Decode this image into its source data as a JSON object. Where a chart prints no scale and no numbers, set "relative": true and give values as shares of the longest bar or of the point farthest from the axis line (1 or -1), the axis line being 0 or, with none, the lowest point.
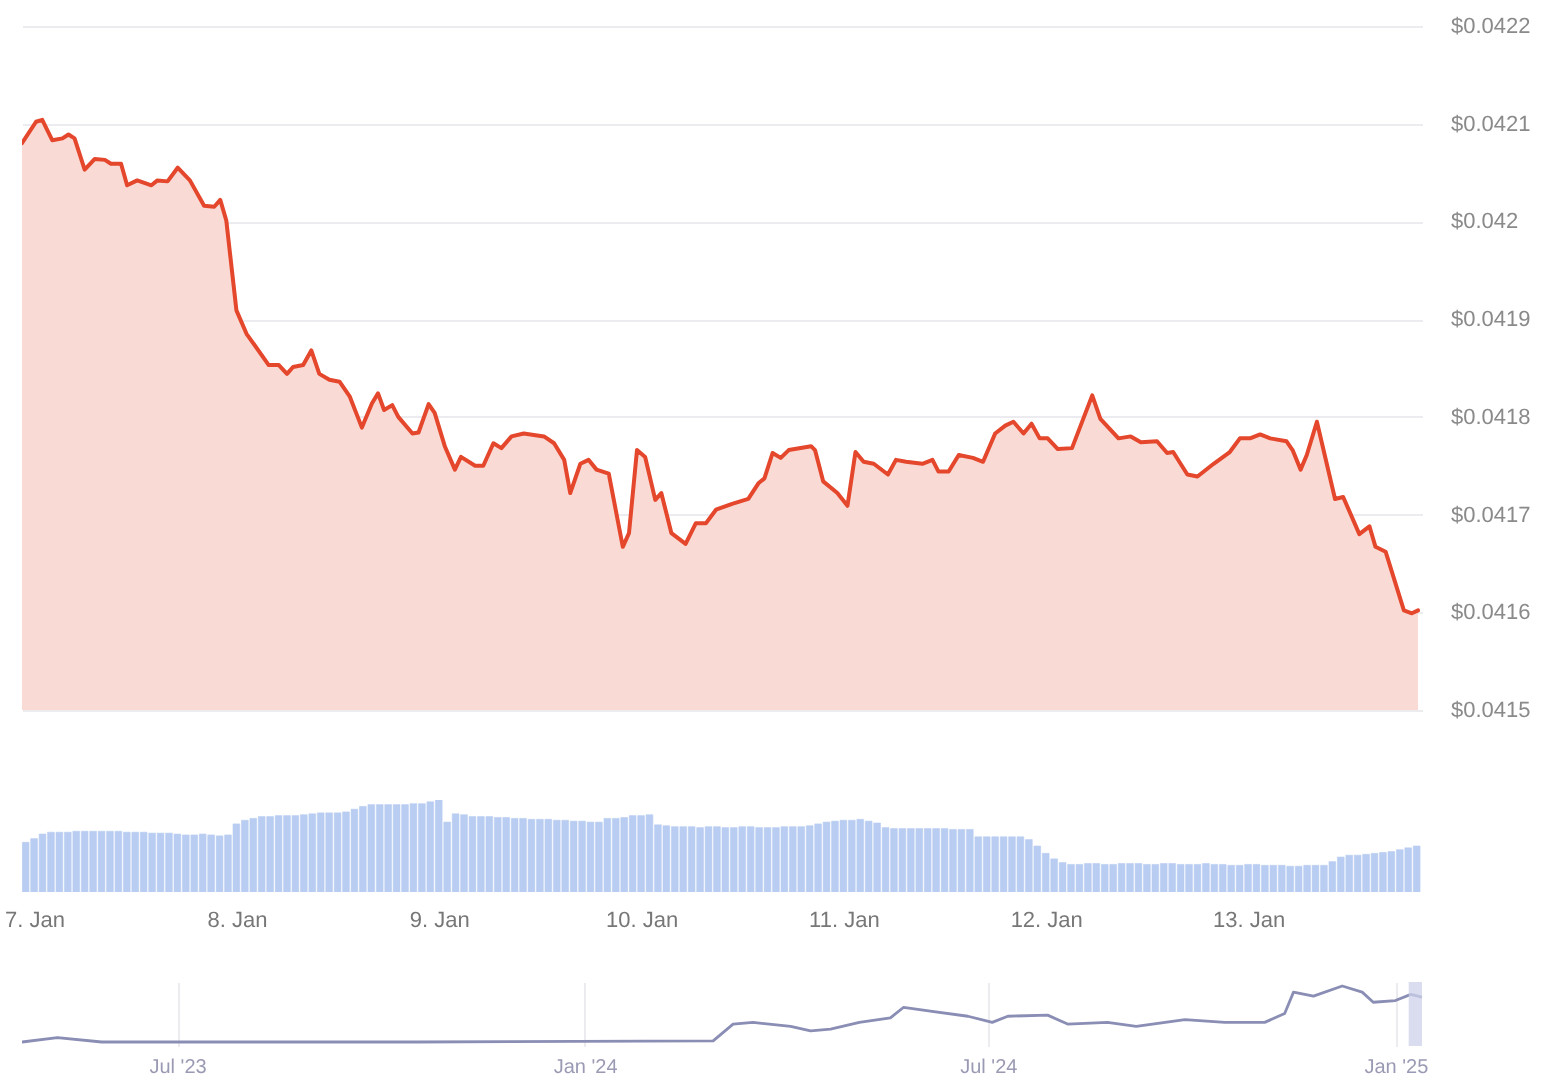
{
  "chart_data": [
    {
      "type": "area",
      "x": [
        "2025-01-06T22:34",
        "2025-01-07T00:14",
        "2025-01-07T00:58",
        "2025-01-07T02:10",
        "2025-01-07T03:22",
        "2025-01-07T04:05",
        "2025-01-07T04:48",
        "2025-01-07T06:00",
        "2025-01-07T07:12",
        "2025-01-07T08:24",
        "2025-01-07T09:07",
        "2025-01-07T10:19",
        "2025-01-07T11:02",
        "2025-01-07T12:14",
        "2025-01-07T13:55",
        "2025-01-07T14:38",
        "2025-01-07T15:50",
        "2025-01-07T17:02",
        "2025-01-07T18:29",
        "2025-01-07T20:10",
        "2025-01-07T21:22",
        "2025-01-07T22:05",
        "2025-01-07T22:48",
        "2025-01-08T00:00",
        "2025-01-08T01:12",
        "2025-01-08T03:50",
        "2025-01-08T05:02",
        "2025-01-08T06:00",
        "2025-01-08T06:43",
        "2025-01-08T07:55",
        "2025-01-08T08:53",
        "2025-01-08T09:50",
        "2025-01-08T11:02",
        "2025-01-08T12:14",
        "2025-01-08T13:26",
        "2025-01-08T14:53",
        "2025-01-08T16:05",
        "2025-01-08T16:48",
        "2025-01-08T17:31",
        "2025-01-08T18:29",
        "2025-01-08T19:12",
        "2025-01-08T20:53",
        "2025-01-08T21:36",
        "2025-01-08T22:48",
        "2025-01-08T23:31",
        "2025-01-09T00:43",
        "2025-01-09T01:55",
        "2025-01-09T02:38",
        "2025-01-09T04:19",
        "2025-01-09T05:17",
        "2025-01-09T06:29",
        "2025-01-09T07:26",
        "2025-01-09T08:38",
        "2025-01-09T10:05",
        "2025-01-09T12:29",
        "2025-01-09T13:41",
        "2025-01-09T14:53",
        "2025-01-09T15:36",
        "2025-01-09T16:48",
        "2025-01-09T17:46",
        "2025-01-09T18:43",
        "2025-01-09T20:10",
        "2025-01-09T21:50",
        "2025-01-09T22:34",
        "2025-01-09T23:31",
        "2025-01-10T00:29",
        "2025-01-10T01:41",
        "2025-01-10T02:24",
        "2025-01-10T03:36",
        "2025-01-10T05:17",
        "2025-01-10T06:29",
        "2025-01-10T07:41",
        "2025-01-10T08:53",
        "2025-01-10T10:48",
        "2025-01-10T12:43",
        "2025-01-10T13:55",
        "2025-01-10T14:38",
        "2025-01-10T15:36",
        "2025-01-10T16:34",
        "2025-01-10T17:31",
        "2025-01-10T20:10",
        "2025-01-10T20:38",
        "2025-01-10T21:36",
        "2025-01-10T23:17",
        "2025-01-11T00:29",
        "2025-01-11T01:26",
        "2025-01-11T02:24",
        "2025-01-11T03:36",
        "2025-01-11T05:17",
        "2025-01-11T06:14",
        "2025-01-11T07:26",
        "2025-01-11T09:22",
        "2025-01-11T10:34",
        "2025-01-11T11:17",
        "2025-01-11T12:29",
        "2025-01-11T13:41",
        "2025-01-11T15:22",
        "2025-01-11T16:34",
        "2025-01-11T18:00",
        "2025-01-11T19:12",
        "2025-01-11T20:10",
        "2025-01-11T21:22",
        "2025-01-11T22:19",
        "2025-01-11T23:17",
        "2025-01-12T00:14",
        "2025-01-12T01:26",
        "2025-01-12T03:07",
        "2025-01-12T05:31",
        "2025-01-12T06:29",
        "2025-01-12T08:38",
        "2025-01-12T10:05",
        "2025-01-12T11:17",
        "2025-01-12T13:12",
        "2025-01-12T14:24",
        "2025-01-12T15:07",
        "2025-01-12T16:48",
        "2025-01-12T18:00",
        "2025-01-12T19:55",
        "2025-01-12T21:50",
        "2025-01-12T23:02",
        "2025-01-13T00:14",
        "2025-01-13T01:26",
        "2025-01-13T02:38",
        "2025-01-13T04:34",
        "2025-01-13T05:17",
        "2025-01-13T06:14",
        "2025-01-13T06:58",
        "2025-01-13T08:10",
        "2025-01-13T10:19",
        "2025-01-13T11:17",
        "2025-01-13T13:12",
        "2025-01-13T14:24",
        "2025-01-13T15:07",
        "2025-01-13T16:19",
        "2025-01-13T18:29",
        "2025-01-13T19:26",
        "2025-01-13T20:10"
      ],
      "values": [
        0.04208,
        0.042102,
        0.042104,
        0.042083,
        0.042085,
        0.042089,
        0.042085,
        0.042053,
        0.042064,
        0.042063,
        0.042059,
        0.042059,
        0.042037,
        0.042042,
        0.042037,
        0.042042,
        0.042041,
        0.042055,
        0.042042,
        0.042016,
        0.042015,
        0.042022,
        0.042001,
        0.041909,
        0.041885,
        0.041853,
        0.041853,
        0.041844,
        0.041851,
        0.041853,
        0.041868,
        0.041844,
        0.041838,
        0.041836,
        0.041821,
        0.041789,
        0.041814,
        0.041824,
        0.041807,
        0.041812,
        0.0418,
        0.041783,
        0.041784,
        0.041813,
        0.041804,
        0.04177,
        0.041746,
        0.041759,
        0.04175,
        0.04175,
        0.041773,
        0.041768,
        0.04178,
        0.041783,
        0.04178,
        0.041773,
        0.041756,
        0.041722,
        0.041752,
        0.041756,
        0.041746,
        0.041742,
        0.041667,
        0.041681,
        0.041766,
        0.041759,
        0.041715,
        0.041722,
        0.041681,
        0.04167,
        0.041691,
        0.041691,
        0.041705,
        0.041711,
        0.041716,
        0.041732,
        0.041737,
        0.041763,
        0.041758,
        0.041766,
        0.04177,
        0.041766,
        0.041734,
        0.041722,
        0.041709,
        0.041764,
        0.041754,
        0.041752,
        0.041741,
        0.041756,
        0.041754,
        0.041752,
        0.041756,
        0.041744,
        0.041744,
        0.041761,
        0.041758,
        0.041754,
        0.041783,
        0.041791,
        0.041795,
        0.041783,
        0.041793,
        0.041778,
        0.041778,
        0.041767,
        0.041768,
        0.041822,
        0.041798,
        0.041778,
        0.04178,
        0.041774,
        0.041775,
        0.041763,
        0.041764,
        0.041741,
        0.041739,
        0.041752,
        0.041764,
        0.041778,
        0.041778,
        0.041782,
        0.041778,
        0.041775,
        0.041766,
        0.041746,
        0.041761,
        0.041795,
        0.041716,
        0.041718,
        0.04168,
        0.041688,
        0.041667,
        0.041662,
        0.041602,
        0.041599,
        0.041602
      ],
      "color": "#e4472c",
      "xlim": [
        "2025-01-06T22:34",
        "2025-01-13T20:38"
      ],
      "ylim": [
        0.0415,
        0.0422
      ],
      "yticks": [
        {
          "value": 0.0415,
          "label": "$0.0415"
        },
        {
          "value": 0.0416,
          "label": "$0.0416"
        },
        {
          "value": 0.0417,
          "label": "$0.0417"
        },
        {
          "value": 0.0418,
          "label": "$0.0418"
        },
        {
          "value": 0.0419,
          "label": "$0.0419"
        },
        {
          "value": 0.042,
          "label": "$0.042"
        },
        {
          "value": 0.0421,
          "label": "$0.0421"
        },
        {
          "value": 0.0422,
          "label": "$0.0422"
        }
      ],
      "grid": "y",
      "tick_labels": "y"
    },
    {
      "type": "bar",
      "relative": true,
      "x": [
        "2025-01-06T23:00",
        "2025-01-07T00:00",
        "2025-01-07T01:00",
        "2025-01-07T02:00",
        "2025-01-07T03:00",
        "2025-01-07T04:00",
        "2025-01-07T05:00",
        "2025-01-07T06:00",
        "2025-01-07T07:00",
        "2025-01-07T08:00",
        "2025-01-07T09:00",
        "2025-01-07T10:00",
        "2025-01-07T11:00",
        "2025-01-07T12:00",
        "2025-01-07T13:00",
        "2025-01-07T14:00",
        "2025-01-07T15:00",
        "2025-01-07T16:00",
        "2025-01-07T17:00",
        "2025-01-07T18:00",
        "2025-01-07T19:00",
        "2025-01-07T20:00",
        "2025-01-07T21:00",
        "2025-01-07T22:00",
        "2025-01-07T23:00",
        "2025-01-08T00:00",
        "2025-01-08T01:00",
        "2025-01-08T02:00",
        "2025-01-08T03:00",
        "2025-01-08T04:00",
        "2025-01-08T05:00",
        "2025-01-08T06:00",
        "2025-01-08T07:00",
        "2025-01-08T08:00",
        "2025-01-08T09:00",
        "2025-01-08T10:00",
        "2025-01-08T11:00",
        "2025-01-08T12:00",
        "2025-01-08T13:00",
        "2025-01-08T14:00",
        "2025-01-08T15:00",
        "2025-01-08T16:00",
        "2025-01-08T17:00",
        "2025-01-08T18:00",
        "2025-01-08T19:00",
        "2025-01-08T20:00",
        "2025-01-08T21:00",
        "2025-01-08T22:00",
        "2025-01-08T23:00",
        "2025-01-09T00:00",
        "2025-01-09T01:00",
        "2025-01-09T02:00",
        "2025-01-09T03:00",
        "2025-01-09T04:00",
        "2025-01-09T05:00",
        "2025-01-09T06:00",
        "2025-01-09T07:00",
        "2025-01-09T08:00",
        "2025-01-09T09:00",
        "2025-01-09T10:00",
        "2025-01-09T11:00",
        "2025-01-09T12:00",
        "2025-01-09T13:00",
        "2025-01-09T14:00",
        "2025-01-09T15:00",
        "2025-01-09T16:00",
        "2025-01-09T17:00",
        "2025-01-09T18:00",
        "2025-01-09T19:00",
        "2025-01-09T20:00",
        "2025-01-09T21:00",
        "2025-01-09T22:00",
        "2025-01-09T23:00",
        "2025-01-10T00:00",
        "2025-01-10T01:00",
        "2025-01-10T02:00",
        "2025-01-10T03:00",
        "2025-01-10T04:00",
        "2025-01-10T05:00",
        "2025-01-10T06:00",
        "2025-01-10T07:00",
        "2025-01-10T08:00",
        "2025-01-10T09:00",
        "2025-01-10T10:00",
        "2025-01-10T11:00",
        "2025-01-10T12:00",
        "2025-01-10T13:00",
        "2025-01-10T14:00",
        "2025-01-10T15:00",
        "2025-01-10T16:00",
        "2025-01-10T17:00",
        "2025-01-10T18:00",
        "2025-01-10T19:00",
        "2025-01-10T20:00",
        "2025-01-10T21:00",
        "2025-01-10T22:00",
        "2025-01-10T23:00",
        "2025-01-11T00:00",
        "2025-01-11T01:00",
        "2025-01-11T02:00",
        "2025-01-11T03:00",
        "2025-01-11T04:00",
        "2025-01-11T05:00",
        "2025-01-11T06:00",
        "2025-01-11T07:00",
        "2025-01-11T08:00",
        "2025-01-11T09:00",
        "2025-01-11T10:00",
        "2025-01-11T11:00",
        "2025-01-11T12:00",
        "2025-01-11T13:00",
        "2025-01-11T14:00",
        "2025-01-11T15:00",
        "2025-01-11T16:00",
        "2025-01-11T17:00",
        "2025-01-11T18:00",
        "2025-01-11T19:00",
        "2025-01-11T20:00",
        "2025-01-11T21:00",
        "2025-01-11T22:00",
        "2025-01-11T23:00",
        "2025-01-12T00:00",
        "2025-01-12T01:00",
        "2025-01-12T02:00",
        "2025-01-12T03:00",
        "2025-01-12T04:00",
        "2025-01-12T05:00",
        "2025-01-12T06:00",
        "2025-01-12T07:00",
        "2025-01-12T08:00",
        "2025-01-12T09:00",
        "2025-01-12T10:00",
        "2025-01-12T11:00",
        "2025-01-12T12:00",
        "2025-01-12T13:00",
        "2025-01-12T14:00",
        "2025-01-12T15:00",
        "2025-01-12T16:00",
        "2025-01-12T17:00",
        "2025-01-12T18:00",
        "2025-01-12T19:00",
        "2025-01-12T20:00",
        "2025-01-12T21:00",
        "2025-01-12T22:00",
        "2025-01-12T23:00",
        "2025-01-13T00:00",
        "2025-01-13T01:00",
        "2025-01-13T02:00",
        "2025-01-13T03:00",
        "2025-01-13T04:00",
        "2025-01-13T05:00",
        "2025-01-13T06:00",
        "2025-01-13T07:00",
        "2025-01-13T08:00",
        "2025-01-13T09:00",
        "2025-01-13T10:00",
        "2025-01-13T11:00",
        "2025-01-13T12:00",
        "2025-01-13T13:00",
        "2025-01-13T14:00",
        "2025-01-13T15:00",
        "2025-01-13T16:00",
        "2025-01-13T17:00",
        "2025-01-13T18:00",
        "2025-01-13T19:00",
        "2025-01-13T20:00"
      ],
      "values": [
        0.54,
        0.58,
        0.63,
        0.65,
        0.65,
        0.65,
        0.66,
        0.66,
        0.66,
        0.66,
        0.66,
        0.66,
        0.65,
        0.65,
        0.65,
        0.64,
        0.64,
        0.64,
        0.63,
        0.62,
        0.62,
        0.63,
        0.62,
        0.61,
        0.62,
        0.74,
        0.78,
        0.8,
        0.82,
        0.82,
        0.83,
        0.83,
        0.83,
        0.84,
        0.85,
        0.86,
        0.86,
        0.86,
        0.87,
        0.9,
        0.93,
        0.95,
        0.95,
        0.95,
        0.95,
        0.95,
        0.96,
        0.96,
        0.98,
        1,
        0.76,
        0.85,
        0.84,
        0.82,
        0.82,
        0.82,
        0.81,
        0.81,
        0.8,
        0.8,
        0.79,
        0.79,
        0.79,
        0.78,
        0.78,
        0.77,
        0.77,
        0.76,
        0.76,
        0.8,
        0.8,
        0.81,
        0.83,
        0.83,
        0.84,
        0.73,
        0.72,
        0.71,
        0.71,
        0.71,
        0.7,
        0.71,
        0.71,
        0.7,
        0.7,
        0.71,
        0.71,
        0.7,
        0.7,
        0.7,
        0.71,
        0.71,
        0.71,
        0.72,
        0.74,
        0.76,
        0.77,
        0.78,
        0.78,
        0.79,
        0.77,
        0.75,
        0.7,
        0.69,
        0.69,
        0.69,
        0.69,
        0.69,
        0.69,
        0.69,
        0.68,
        0.68,
        0.68,
        0.6,
        0.6,
        0.6,
        0.6,
        0.6,
        0.6,
        0.57,
        0.5,
        0.42,
        0.36,
        0.32,
        0.3,
        0.3,
        0.31,
        0.31,
        0.3,
        0.3,
        0.31,
        0.31,
        0.31,
        0.3,
        0.3,
        0.31,
        0.31,
        0.3,
        0.3,
        0.3,
        0.31,
        0.3,
        0.3,
        0.29,
        0.29,
        0.3,
        0.3,
        0.29,
        0.29,
        0.29,
        0.28,
        0.28,
        0.29,
        0.29,
        0.29,
        0.33,
        0.38,
        0.4,
        0.4,
        0.41,
        0.42,
        0.43,
        0.44,
        0.46,
        0.48,
        0.5
      ],
      "color": "#b9cdf2",
      "xlim": [
        "2025-01-06T22:34",
        "2025-01-13T20:38"
      ],
      "xticks": [
        {
          "value": "2025-01-07",
          "label": "7. Jan"
        },
        {
          "value": "2025-01-08",
          "label": "8. Jan"
        },
        {
          "value": "2025-01-09",
          "label": "9. Jan"
        },
        {
          "value": "2025-01-10",
          "label": "10. Jan"
        },
        {
          "value": "2025-01-11",
          "label": "11. Jan"
        },
        {
          "value": "2025-01-12",
          "label": "12. Jan"
        },
        {
          "value": "2025-01-13",
          "label": "13. Jan"
        }
      ],
      "tick_labels": "x"
    },
    {
      "type": "line",
      "relative": true,
      "x": [
        "2023-04-22",
        "2023-05-08",
        "2023-05-28",
        "2023-10-17",
        "2024-02-28",
        "2024-03-08",
        "2024-03-17",
        "2024-04-03",
        "2024-04-12",
        "2024-04-21",
        "2024-05-04",
        "2024-05-18",
        "2024-05-24",
        "2024-06-05",
        "2024-06-22",
        "2024-07-03",
        "2024-07-10",
        "2024-07-28",
        "2024-08-06",
        "2024-08-24",
        "2024-09-06",
        "2024-09-28",
        "2024-10-16",
        "2024-11-03",
        "2024-11-12",
        "2024-11-16",
        "2024-11-25",
        "2024-12-08",
        "2024-12-17",
        "2024-12-22",
        "2025-01-01",
        "2025-01-08",
        "2025-01-13"
      ],
      "values": [
        0,
        0.08,
        0,
        0,
        0.02,
        0.32,
        0.35,
        0.28,
        0.2,
        0.23,
        0.35,
        0.43,
        0.62,
        0.55,
        0.46,
        0.35,
        0.46,
        0.48,
        0.32,
        0.35,
        0.28,
        0.4,
        0.35,
        0.35,
        0.51,
        0.89,
        0.82,
        1,
        0.89,
        0.71,
        0.74,
        0.85,
        0.8
      ],
      "color": "#8a8db4",
      "xlim": [
        "2023-04-22",
        "2025-01-13"
      ],
      "xticks": [
        {
          "value": "2023-07-01",
          "label": "Jul '23"
        },
        {
          "value": "2024-01-01",
          "label": "Jan '24"
        },
        {
          "value": "2024-07-01",
          "label": "Jul '24"
        },
        {
          "value": "2025-01-01",
          "label": "Jan '25"
        }
      ],
      "grid": "x",
      "tick_labels": "x",
      "bands": [
        {
          "axis": "x",
          "from": "2025-01-07",
          "to": "2025-01-13",
          "color": "#ccd1ea"
        }
      ]
    }
  ]
}
